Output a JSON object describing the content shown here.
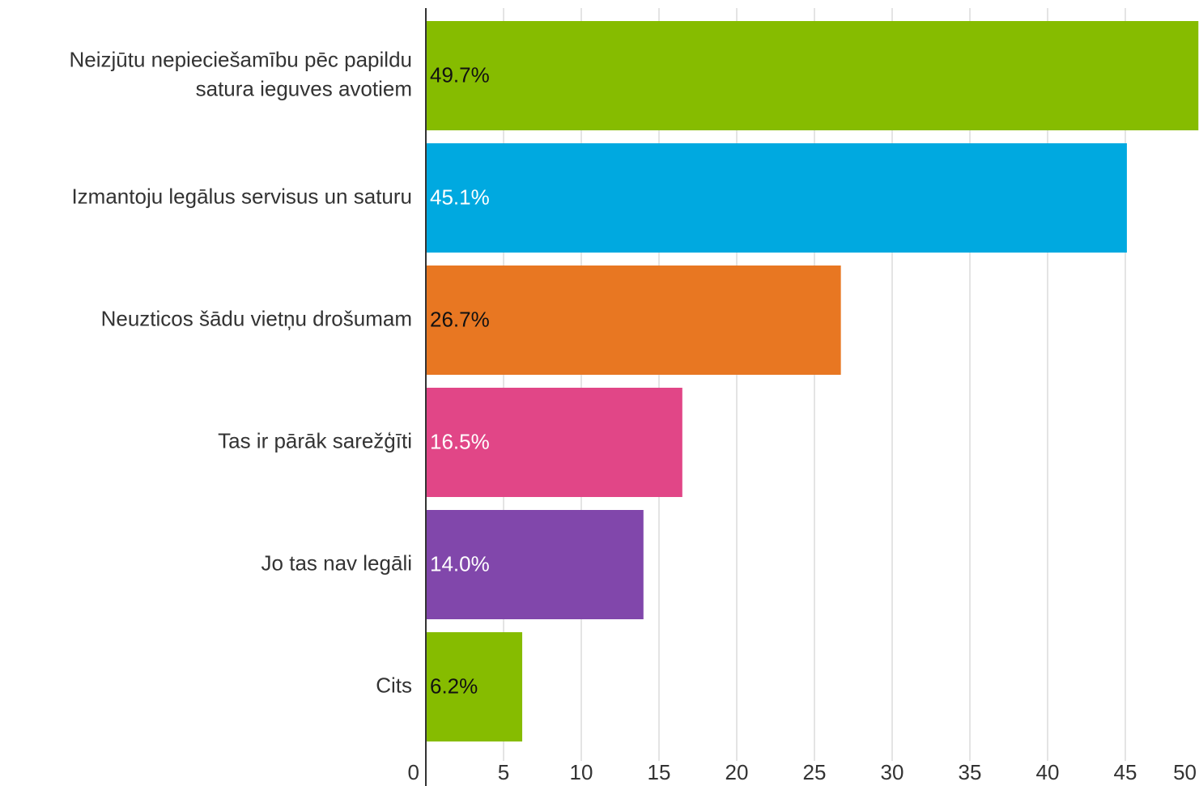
{
  "chart_data": {
    "type": "barh",
    "categories": [
      "Neizjūtu nepieciešamību pēc papildu satura ieguves avotiem",
      "Izmantoju legālus servisus un saturu",
      "Neuzticos šādu vietņu drošumam",
      "Tas ir pārāk sarežģīti",
      "Jo tas nav legāli",
      "Cits"
    ],
    "values": [
      49.7,
      45.1,
      26.7,
      16.5,
      14.0,
      6.2
    ],
    "value_labels": [
      "49.7%",
      "45.1%",
      "26.7%",
      "16.5%",
      "14.0%",
      "6.2%"
    ],
    "colors": [
      "#86bc00",
      "#00a9e0",
      "#e87722",
      "#e14687",
      "#8147ab",
      "#86bc00"
    ],
    "value_label_colors": [
      "#111111",
      "#ffffff",
      "#111111",
      "#ffffff",
      "#ffffff",
      "#111111"
    ],
    "xlim": [
      0,
      50
    ],
    "xticks": [
      0,
      5,
      10,
      15,
      20,
      25,
      30,
      35,
      40,
      45,
      50
    ],
    "grid": true
  }
}
